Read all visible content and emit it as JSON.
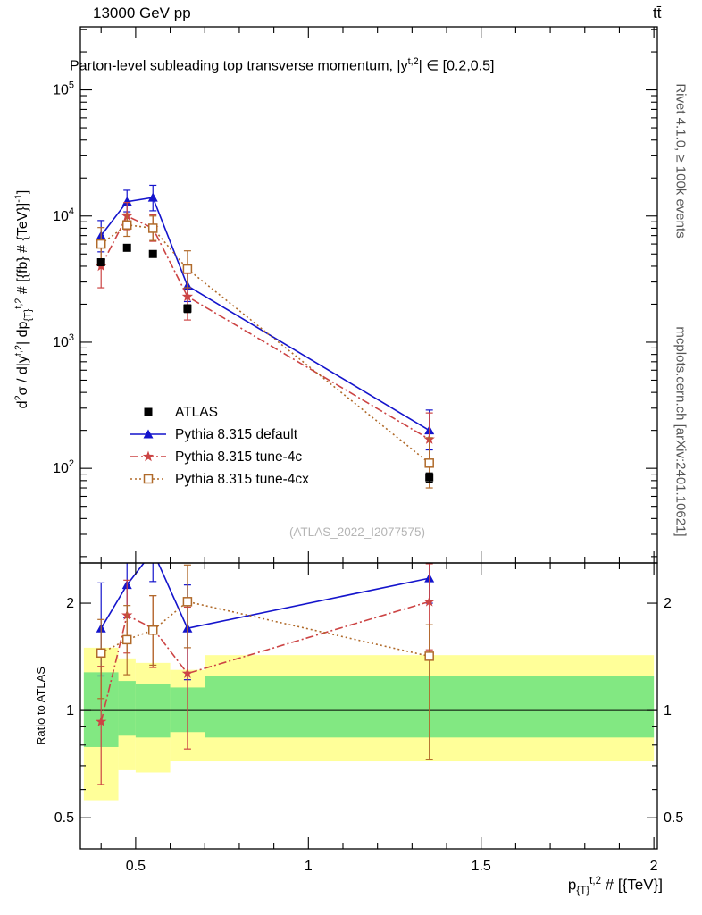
{
  "header": {
    "left": "13000 GeV pp",
    "right": "tt̄"
  },
  "sidebar_right": {
    "top": "Rivet 4.1.0, ≥ 100k events",
    "bottom": "mcplots.cern.ch [arXiv:2401.10621]"
  },
  "watermark": "(ATLAS_2022_I2077575)",
  "chart_data": {
    "type": "line",
    "title": "Parton-level subleading top transverse momentum, |y^{t,2}| ∈ [0.2,0.5]",
    "xlabel": "p_{{T}}^{t,2} # [{TeV}]",
    "ylabel": "d^{2}σ / d|y^{t,2}| dp_{{T}}^{t,2} # [{fb} # {TeV}]^{-1}]",
    "ratio_ylabel": "Ratio to ATLAS",
    "legend_position": "middle-left",
    "grid": false,
    "xlim": [
      0.34,
      2.01
    ],
    "ylim": [
      17.8,
      316000
    ],
    "ratio_ylim": [
      0.409,
      2.594
    ],
    "x_ticks": [
      {
        "v": 0.5,
        "label": "0.5"
      },
      {
        "v": 1.0,
        "label": "1"
      },
      {
        "v": 1.5,
        "label": "1.5"
      },
      {
        "v": 2.0,
        "label": "2"
      }
    ],
    "y_tick_exponents": [
      2,
      3,
      4,
      5
    ],
    "ratio_ticks": [
      {
        "v": 0.5,
        "label": "0.5"
      },
      {
        "v": 1.0,
        "label": "1"
      },
      {
        "v": 2.0,
        "label": "2"
      }
    ],
    "x": [
      0.4,
      0.475,
      0.55,
      0.65,
      1.35
    ],
    "series": [
      {
        "name": "ATLAS",
        "color": "#000000",
        "marker": "square-filled",
        "line": "none",
        "y": [
          4300,
          5600,
          5000,
          1850,
          85
        ],
        "ylo": [
          4050,
          5300,
          4750,
          1720,
          78
        ],
        "yhi": [
          4550,
          5900,
          5250,
          1980,
          92
        ],
        "ratio": null
      },
      {
        "name": "Pythia 8.315 default",
        "color": "#1414cc",
        "marker": "triangle-filled",
        "line": "solid",
        "y": [
          7000,
          13000,
          14000,
          2800,
          200
        ],
        "ylo": [
          5200,
          10800,
          11000,
          2100,
          140
        ],
        "yhi": [
          9200,
          16000,
          17500,
          3700,
          290
        ],
        "ratio": [
          1.7,
          2.25,
          2.8,
          1.7,
          2.35
        ],
        "ratio_lo": [
          1.25,
          1.82,
          2.3,
          1.22,
          2.0
        ],
        "ratio_hi": [
          2.28,
          2.68,
          3.3,
          2.25,
          2.75
        ]
      },
      {
        "name": "Pythia 8.315 tune-4c",
        "color": "#cc4444",
        "marker": "star-filled",
        "line": "dashdot",
        "y": [
          4000,
          10000,
          8000,
          2300,
          170
        ],
        "ylo": [
          2700,
          7800,
          6300,
          1500,
          105
        ],
        "yhi": [
          5800,
          12800,
          10200,
          3500,
          275
        ],
        "ratio": [
          0.93,
          1.85,
          1.7,
          1.27,
          2.02
        ],
        "ratio_lo": [
          0.62,
          1.45,
          1.32,
          0.78,
          1.48
        ],
        "ratio_hi": [
          1.33,
          2.32,
          2.1,
          1.95,
          2.58
        ]
      },
      {
        "name": "Pythia 8.315 tune-4cx",
        "color": "#b06a2a",
        "marker": "square-open",
        "line": "dotted",
        "y": [
          6000,
          8500,
          8000,
          3800,
          110
        ],
        "ylo": [
          4400,
          6900,
          6400,
          2700,
          70
        ],
        "yhi": [
          8100,
          10400,
          10000,
          5300,
          175
        ],
        "ratio": [
          1.45,
          1.58,
          1.68,
          2.02,
          1.42
        ],
        "ratio_lo": [
          1.08,
          1.26,
          1.34,
          1.5,
          0.73
        ],
        "ratio_hi": [
          1.8,
          1.97,
          2.1,
          2.56,
          1.74
        ]
      }
    ],
    "ratio_bands": {
      "edges": [
        0.35,
        0.45,
        0.5,
        0.6,
        0.7,
        2.0
      ],
      "yellow_lo": [
        0.56,
        0.68,
        0.67,
        0.72,
        0.72
      ],
      "yellow_hi": [
        1.5,
        1.4,
        1.36,
        1.3,
        1.43
      ],
      "green_lo": [
        0.79,
        0.85,
        0.84,
        0.87,
        0.84
      ],
      "green_hi": [
        1.28,
        1.21,
        1.19,
        1.16,
        1.25
      ],
      "yellow_color": "#ffff99",
      "green_color": "#82e882"
    }
  }
}
